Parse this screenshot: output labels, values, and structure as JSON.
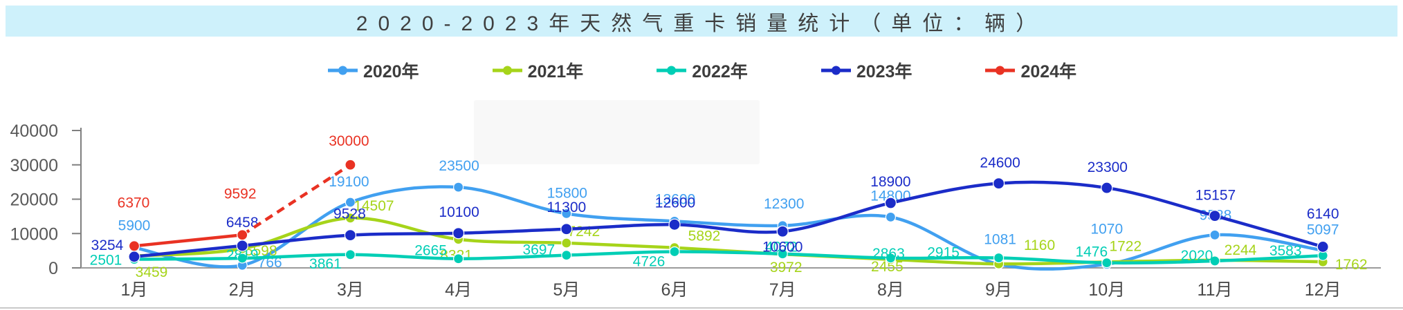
{
  "title": {
    "text": "2020-2023年天然气重卡销量统计（单位：辆）"
  },
  "chart_data": {
    "type": "line",
    "title": "2020-2023年天然气重卡销量统计（单位：辆）",
    "unit": "辆",
    "categories": [
      "1月",
      "2月",
      "3月",
      "4月",
      "5月",
      "6月",
      "7月",
      "8月",
      "9月",
      "10月",
      "11月",
      "12月"
    ],
    "ylim": [
      0,
      40000
    ],
    "y_ticks": [
      0,
      10000,
      20000,
      30000,
      40000
    ],
    "grid": false,
    "legend_position": "top",
    "series": [
      {
        "name": "2020年",
        "color": "#41A0F0",
        "smooth": true,
        "marker": "circle",
        "marker_r": 7,
        "values": [
          5900,
          766,
          19100,
          23500,
          15800,
          13600,
          12300,
          14800,
          1081,
          1070,
          9588,
          5097
        ],
        "label_dx": [
          0,
          40,
          -2,
          1,
          1,
          1,
          2,
          0,
          2,
          0,
          1,
          0
        ],
        "label_dy": [
          -32,
          -4,
          -30,
          -31,
          -30,
          -32,
          -32,
          -31,
          -36,
          -51,
          -29,
          -30
        ]
      },
      {
        "name": "2021年",
        "color": "#A6D41A",
        "smooth": true,
        "marker": "circle",
        "marker_r": 7,
        "values": [
          3459,
          5598,
          14507,
          8321,
          7242,
          5892,
          3972,
          2455,
          1160,
          1722,
          2244,
          1762
        ],
        "label_dx": [
          25,
          27,
          34,
          -3,
          25,
          43,
          5,
          -5,
          59,
          27,
          37,
          41
        ],
        "label_dy": [
          23,
          3,
          -18,
          23,
          -17,
          -17,
          19,
          10,
          -27,
          -23,
          -15,
          4
        ]
      },
      {
        "name": "2022年",
        "color": "#00CEB5",
        "smooth": true,
        "marker": "circle",
        "marker_r": 7,
        "values": [
          2501,
          2819,
          3861,
          2665,
          3697,
          4726,
          4072,
          2863,
          2915,
          1476,
          2020,
          3583
        ],
        "label_dx": [
          -41,
          0,
          -36,
          -40,
          -40,
          -37,
          -2,
          -3,
          -80,
          -22,
          -26,
          -54
        ],
        "label_dy": [
          1,
          -5,
          13,
          -12,
          -8,
          14,
          -10,
          -7,
          -8,
          -16,
          -8,
          -7
        ]
      },
      {
        "name": "2023年",
        "color": "#1B2CC8",
        "smooth": true,
        "marker": "circle",
        "marker_r": 8,
        "values": [
          3254,
          6458,
          9528,
          10100,
          11300,
          12600,
          10600,
          18900,
          24600,
          23300,
          15157,
          6140
        ],
        "label_dx": [
          -39,
          0,
          -1,
          1,
          0,
          1,
          0,
          0,
          2,
          1,
          1,
          0
        ],
        "label_dy": [
          -17,
          -34,
          -31,
          -31,
          -32,
          -32,
          22,
          -31,
          -30,
          -30,
          -30,
          -48
        ]
      },
      {
        "name": "2024年",
        "color": "#E93223",
        "smooth": false,
        "dashed_from": 1,
        "marker": "circle",
        "marker_r": 7.5,
        "values": [
          6370,
          9592,
          30000
        ],
        "label_dx": [
          -1,
          -3,
          -2
        ],
        "label_dy": [
          -63,
          -60,
          -35
        ]
      }
    ]
  }
}
